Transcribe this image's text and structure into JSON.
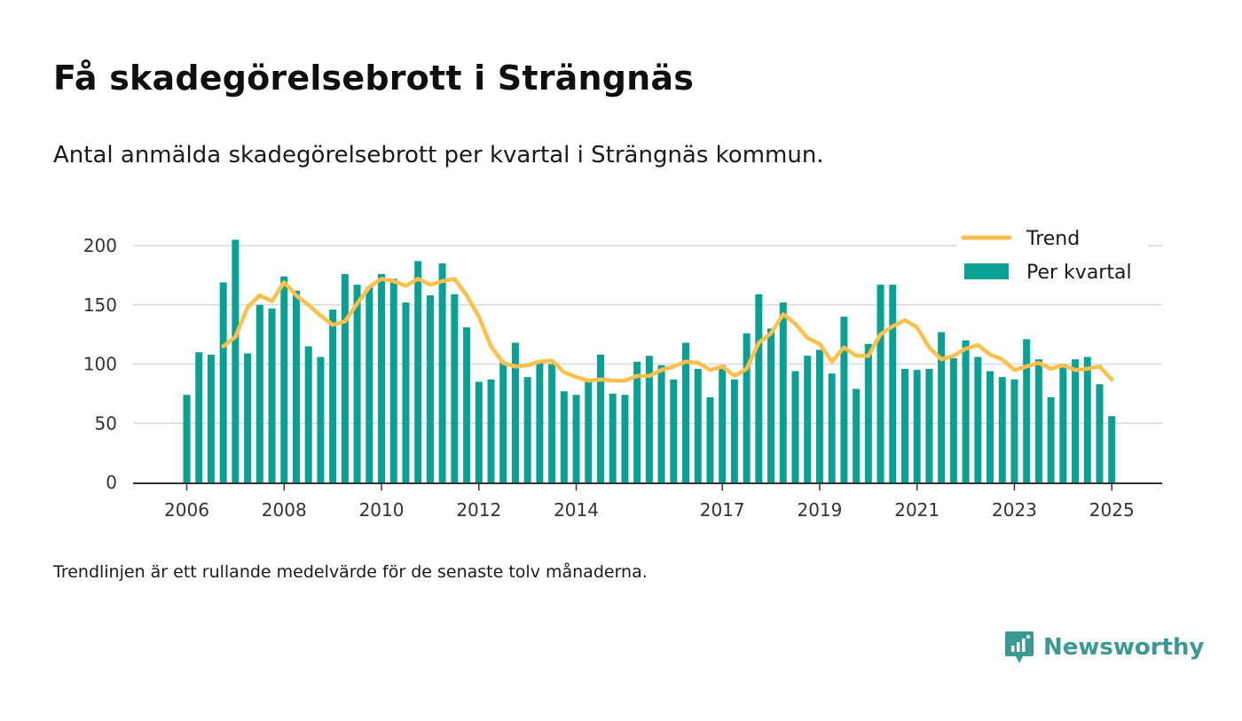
{
  "title": "Få skadegörelsebrott i Strängnäs",
  "subtitle": "Antal anmälda skadegörelsebrott per kvartal i Strängnäs kommun.",
  "note": "Trendlinjen är ett rullande medelvärde för de senaste tolv månaderna.",
  "brand": {
    "name": "Newsworthy",
    "icon": "newsworthy-logo-icon",
    "color": "#3a9a92"
  },
  "colors": {
    "bars": "#0aa195",
    "trend": "#fcc04b",
    "grid": "#d9d9d9",
    "axis": "#333333"
  },
  "chart_data": {
    "type": "bar",
    "x_start": "2006 Q1",
    "x_step": "quarter",
    "xticks": [
      "2006",
      "2008",
      "2010",
      "2012",
      "2014",
      "2017",
      "2019",
      "2021",
      "2023",
      "2025"
    ],
    "xtick_positions": [
      0,
      8,
      16,
      24,
      32,
      44,
      52,
      60,
      68,
      76
    ],
    "yticks": [
      "0",
      "50",
      "100",
      "150",
      "200"
    ],
    "ylim": [
      0,
      200
    ],
    "grid": true,
    "legend_position": "top-right",
    "legend": {
      "trend": "Trend",
      "bars": "Per kvartal"
    },
    "series": [
      {
        "name": "Per kvartal",
        "type": "bar",
        "values": [
          74,
          110,
          108,
          169,
          205,
          109,
          150,
          147,
          174,
          162,
          115,
          106,
          146,
          176,
          167,
          165,
          176,
          172,
          152,
          187,
          158,
          185,
          159,
          131,
          85,
          87,
          101,
          118,
          89,
          101,
          100,
          77,
          74,
          85,
          108,
          75,
          74,
          102,
          107,
          99,
          87,
          118,
          96,
          72,
          99,
          87,
          126,
          159,
          130,
          152,
          94,
          107,
          112,
          92,
          140,
          79,
          117,
          167,
          167,
          96,
          95,
          96,
          127,
          105,
          120,
          106,
          94,
          89,
          87,
          121,
          104,
          72,
          99,
          104,
          106,
          83,
          56
        ]
      },
      {
        "name": "Trend",
        "type": "line",
        "values": [
          null,
          null,
          null,
          115,
          123,
          148,
          158,
          153,
          169,
          158,
          150,
          141,
          133,
          136,
          151,
          165,
          172,
          170,
          166,
          172,
          167,
          170,
          172,
          158,
          140,
          115,
          101,
          98,
          99,
          102,
          103,
          93,
          89,
          86,
          87,
          86,
          86,
          90,
          90,
          95,
          98,
          102,
          101,
          95,
          98,
          90,
          96,
          118,
          126,
          142,
          134,
          122,
          117,
          102,
          114,
          107,
          107,
          125,
          132,
          137,
          131,
          114,
          104,
          107,
          113,
          116,
          108,
          104,
          95,
          98,
          101,
          96,
          99,
          95,
          96,
          98,
          87
        ]
      }
    ]
  }
}
